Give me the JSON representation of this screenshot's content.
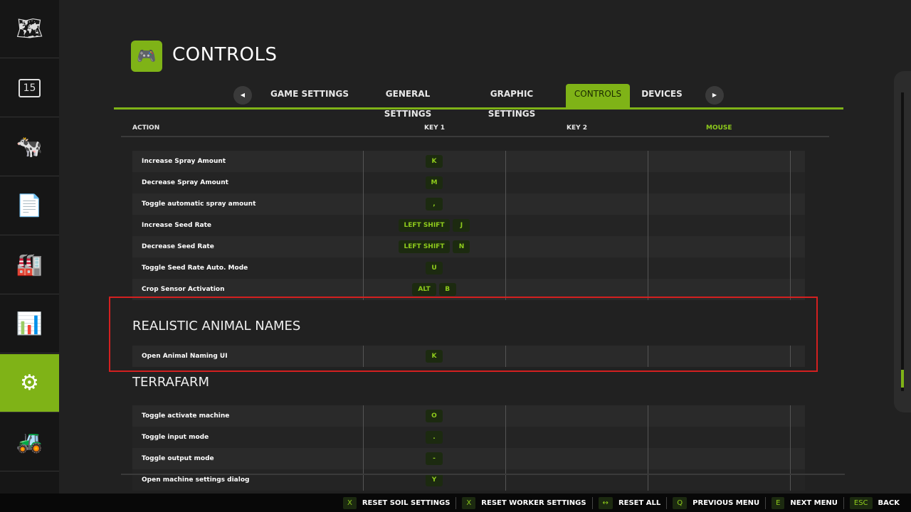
{
  "sidebar": {
    "items": [
      {
        "icon": "map-icon",
        "glyph": "🗺"
      },
      {
        "icon": "calendar-icon",
        "glyph": "15"
      },
      {
        "icon": "cow-icon",
        "glyph": "🐄"
      },
      {
        "icon": "contracts-icon",
        "glyph": "📄"
      },
      {
        "icon": "production-icon",
        "glyph": "🏭"
      },
      {
        "icon": "statistics-icon",
        "glyph": "📊"
      },
      {
        "icon": "settings-icon",
        "glyph": "⚙",
        "active": true
      },
      {
        "icon": "construction-icon",
        "glyph": "🚜"
      }
    ]
  },
  "header": {
    "title": "CONTROLS",
    "icon": "gamepad-icon"
  },
  "tabs": [
    {
      "label": "GAME SETTINGS"
    },
    {
      "label": "GENERAL SETTINGS"
    },
    {
      "label": "GRAPHIC SETTINGS"
    },
    {
      "label": "CONTROLS",
      "active": true
    },
    {
      "label": "DEVICES"
    }
  ],
  "columns": {
    "action": "ACTION",
    "key1": "KEY 1",
    "key2": "KEY 2",
    "mouse": "MOUSE"
  },
  "accent": "#7fb317",
  "sections": [
    {
      "title": "",
      "rows": [
        {
          "action": "Increase Spray Amount",
          "keys": [
            "K"
          ]
        },
        {
          "action": "Decrease Spray Amount",
          "keys": [
            "M"
          ]
        },
        {
          "action": "Toggle automatic spray amount",
          "keys": [
            ","
          ]
        },
        {
          "action": "Increase Seed Rate",
          "keys": [
            "LEFT SHIFT",
            "J"
          ]
        },
        {
          "action": "Decrease Seed Rate",
          "keys": [
            "LEFT SHIFT",
            "N"
          ]
        },
        {
          "action": "Toggle Seed Rate Auto. Mode",
          "keys": [
            "U"
          ]
        },
        {
          "action": "Crop Sensor Activation",
          "keys": [
            "ALT",
            "B"
          ]
        }
      ]
    },
    {
      "title": "REALISTIC ANIMAL NAMES",
      "rows": [
        {
          "action": "Open Animal Naming UI",
          "keys": [
            "K"
          ]
        }
      ]
    },
    {
      "title": "TERRAFARM",
      "rows": [
        {
          "action": "Toggle activate machine",
          "keys": [
            "O"
          ]
        },
        {
          "action": "Toggle input mode",
          "keys": [
            "."
          ]
        },
        {
          "action": "Toggle output mode",
          "keys": [
            "-"
          ]
        },
        {
          "action": "Open machine settings dialog",
          "keys": [
            "Y"
          ]
        }
      ]
    }
  ],
  "bottom": [
    {
      "key": "X",
      "label": "RESET SOIL SETTINGS"
    },
    {
      "key": "X",
      "label": "RESET WORKER SETTINGS"
    },
    {
      "key": "↔",
      "label": "RESET ALL"
    },
    {
      "key": "Q",
      "label": "PREVIOUS MENU"
    },
    {
      "key": "E",
      "label": "NEXT MENU"
    },
    {
      "key": "ESC",
      "label": "BACK"
    }
  ]
}
